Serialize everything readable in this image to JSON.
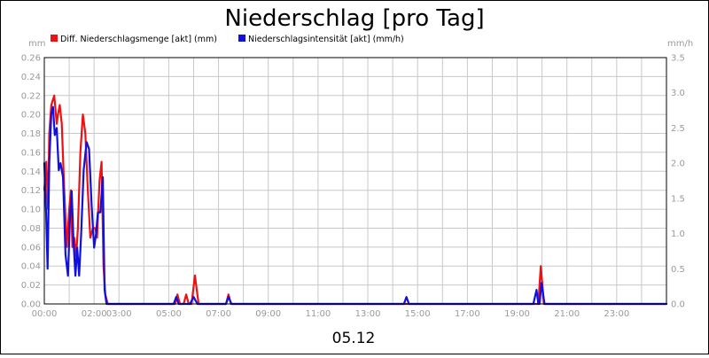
{
  "chart_data": {
    "type": "line",
    "title": "Niederschlag [pro Tag]",
    "date_label": "05.12",
    "left_unit": "mm",
    "right_unit": "mm/h",
    "legend_position": "top-left",
    "grid": true,
    "x_ticks": [
      "00:00",
      "02:00",
      "03:00",
      "05:00",
      "07:00",
      "09:00",
      "11:00",
      "13:00",
      "15:00",
      "17:00",
      "19:00",
      "21:00",
      "23:00"
    ],
    "x_tick_hours": [
      0,
      2,
      3,
      5,
      7,
      9,
      11,
      13,
      15,
      17,
      19,
      21,
      23
    ],
    "x_range_hours": [
      0,
      25
    ],
    "left_axis": {
      "ticks": [
        "0.00",
        "0.02",
        "0.04",
        "0.06",
        "0.08",
        "0.10",
        "0.12",
        "0.14",
        "0.16",
        "0.18",
        "0.20",
        "0.22",
        "0.24",
        "0.26"
      ],
      "ylim": [
        0,
        0.26
      ]
    },
    "right_axis": {
      "ticks": [
        "0.0",
        "0.5",
        "1.0",
        "1.5",
        "2.0",
        "2.5",
        "3.0",
        "3.5"
      ],
      "ylim": [
        0,
        3.5
      ]
    },
    "series": [
      {
        "name": "Diff. Niederschlagsmenge [akt] (mm)",
        "color": "#ee1111",
        "axis": "left",
        "points": [
          [
            0.0,
            0.12
          ],
          [
            0.08,
            0.15
          ],
          [
            0.15,
            0.1
          ],
          [
            0.2,
            0.18
          ],
          [
            0.28,
            0.21
          ],
          [
            0.4,
            0.22
          ],
          [
            0.5,
            0.19
          ],
          [
            0.55,
            0.2
          ],
          [
            0.62,
            0.21
          ],
          [
            0.7,
            0.19
          ],
          [
            0.8,
            0.12
          ],
          [
            0.9,
            0.06
          ],
          [
            1.0,
            0.1
          ],
          [
            1.07,
            0.12
          ],
          [
            1.13,
            0.06
          ],
          [
            1.2,
            0.07
          ],
          [
            1.28,
            0.05
          ],
          [
            1.35,
            0.08
          ],
          [
            1.45,
            0.16
          ],
          [
            1.55,
            0.2
          ],
          [
            1.65,
            0.18
          ],
          [
            1.75,
            0.12
          ],
          [
            1.85,
            0.07
          ],
          [
            1.95,
            0.08
          ],
          [
            2.05,
            0.08
          ],
          [
            2.12,
            0.07
          ],
          [
            2.22,
            0.13
          ],
          [
            2.3,
            0.15
          ],
          [
            2.38,
            0.04
          ],
          [
            2.45,
            0.01
          ],
          [
            2.55,
            0.0
          ],
          [
            5.25,
            0.0
          ],
          [
            5.35,
            0.01
          ],
          [
            5.45,
            0.0
          ],
          [
            5.6,
            0.0
          ],
          [
            5.7,
            0.01
          ],
          [
            5.8,
            0.0
          ],
          [
            5.92,
            0.0
          ],
          [
            6.05,
            0.03
          ],
          [
            6.2,
            0.0
          ],
          [
            7.3,
            0.0
          ],
          [
            7.4,
            0.01
          ],
          [
            7.5,
            0.0
          ],
          [
            19.85,
            0.0
          ],
          [
            19.95,
            0.04
          ],
          [
            20.08,
            0.0
          ],
          [
            25.0,
            0.0
          ]
        ]
      },
      {
        "name": "Niederschlagsintensität [akt] (mm/h)",
        "color": "#1111dd",
        "axis": "right",
        "points": [
          [
            0.0,
            2.0
          ],
          [
            0.07,
            1.3
          ],
          [
            0.13,
            0.5
          ],
          [
            0.2,
            2.0
          ],
          [
            0.28,
            2.7
          ],
          [
            0.35,
            2.8
          ],
          [
            0.42,
            2.4
          ],
          [
            0.5,
            2.5
          ],
          [
            0.58,
            1.9
          ],
          [
            0.65,
            2.0
          ],
          [
            0.75,
            1.8
          ],
          [
            0.85,
            0.7
          ],
          [
            0.95,
            0.4
          ],
          [
            1.03,
            1.2
          ],
          [
            1.1,
            1.6
          ],
          [
            1.17,
            0.9
          ],
          [
            1.25,
            0.4
          ],
          [
            1.32,
            0.8
          ],
          [
            1.4,
            0.4
          ],
          [
            1.48,
            1.0
          ],
          [
            1.58,
            1.9
          ],
          [
            1.7,
            2.3
          ],
          [
            1.8,
            2.2
          ],
          [
            1.9,
            1.4
          ],
          [
            2.0,
            0.8
          ],
          [
            2.08,
            1.0
          ],
          [
            2.15,
            1.3
          ],
          [
            2.25,
            1.3
          ],
          [
            2.35,
            1.8
          ],
          [
            2.42,
            0.2
          ],
          [
            2.5,
            0.0
          ],
          [
            5.2,
            0.0
          ],
          [
            5.3,
            0.1
          ],
          [
            5.4,
            0.0
          ],
          [
            5.85,
            0.0
          ],
          [
            6.0,
            0.1
          ],
          [
            6.15,
            0.0
          ],
          [
            7.3,
            0.0
          ],
          [
            7.4,
            0.1
          ],
          [
            7.52,
            0.0
          ],
          [
            14.45,
            0.0
          ],
          [
            14.55,
            0.1
          ],
          [
            14.65,
            0.0
          ],
          [
            19.65,
            0.0
          ],
          [
            19.78,
            0.2
          ],
          [
            19.85,
            0.0
          ],
          [
            19.9,
            0.0
          ],
          [
            19.98,
            0.3
          ],
          [
            20.1,
            0.0
          ],
          [
            25.0,
            0.0
          ]
        ]
      }
    ]
  }
}
